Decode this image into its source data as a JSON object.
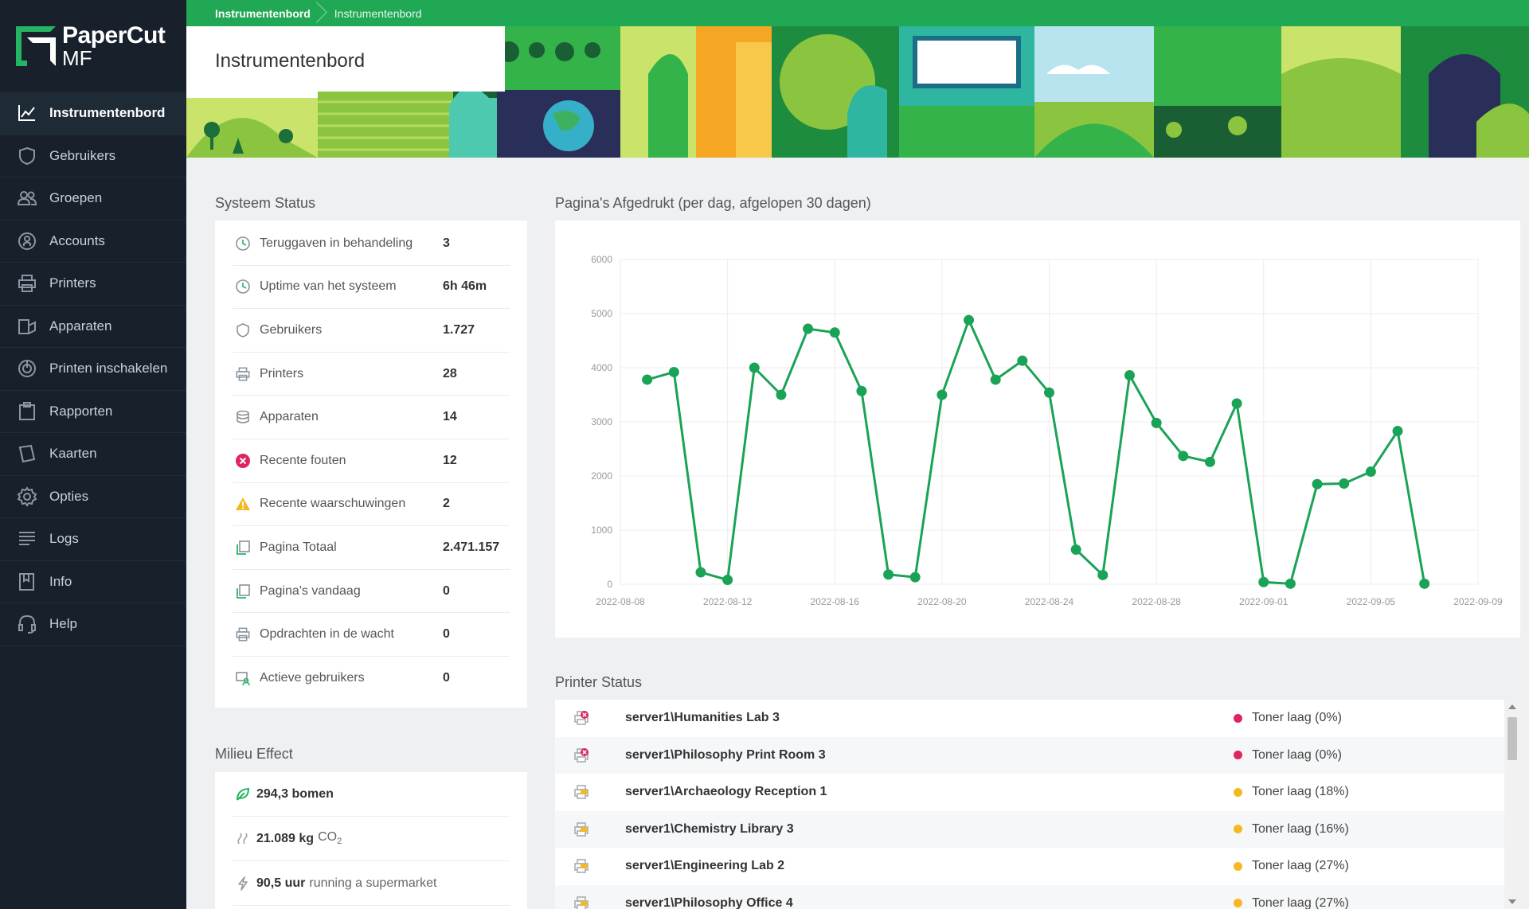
{
  "brand": {
    "name_line1": "PaperCut",
    "name_line2": "MF"
  },
  "breadcrumb": {
    "first": "Instrumentenbord",
    "second": "Instrumentenbord"
  },
  "page": {
    "title": "Instrumentenbord"
  },
  "sidebar": {
    "items": [
      {
        "label": "Instrumentenbord",
        "icon": "chart-line-icon",
        "active": true
      },
      {
        "label": "Gebruikers",
        "icon": "user-shield-icon"
      },
      {
        "label": "Groepen",
        "icon": "group-icon"
      },
      {
        "label": "Accounts",
        "icon": "account-icon"
      },
      {
        "label": "Printers",
        "icon": "printer-icon"
      },
      {
        "label": "Apparaten",
        "icon": "device-icon"
      },
      {
        "label": "Printen inschakelen",
        "icon": "power-icon"
      },
      {
        "label": "Rapporten",
        "icon": "clipboard-icon"
      },
      {
        "label": "Kaarten",
        "icon": "card-icon"
      },
      {
        "label": "Opties",
        "icon": "gear-icon"
      },
      {
        "label": "Logs",
        "icon": "list-icon"
      },
      {
        "label": "Info",
        "icon": "book-icon"
      },
      {
        "label": "Help",
        "icon": "headset-icon"
      }
    ]
  },
  "system_status": {
    "title": "Systeem Status",
    "rows": [
      {
        "label": "Teruggaven in behandeling",
        "value": "3",
        "icon": "clock-icon"
      },
      {
        "label": "Uptime van het systeem",
        "value": "6h 46m",
        "icon": "clock-icon"
      },
      {
        "label": "Gebruikers",
        "value": "1.727",
        "icon": "shield-icon"
      },
      {
        "label": "Printers",
        "value": "28",
        "icon": "printer-icon"
      },
      {
        "label": "Apparaten",
        "value": "14",
        "icon": "database-icon"
      },
      {
        "label": "Recente fouten",
        "value": "12",
        "icon": "error-icon"
      },
      {
        "label": "Recente waarschuwingen",
        "value": "2",
        "icon": "warning-icon"
      },
      {
        "label": "Pagina Totaal",
        "value": "2.471.157",
        "icon": "pages-icon"
      },
      {
        "label": "Pagina's vandaag",
        "value": "0",
        "icon": "pages-icon"
      },
      {
        "label": "Opdrachten in de wacht",
        "value": "0",
        "icon": "printer-icon"
      },
      {
        "label": "Actieve gebruikers",
        "value": "0",
        "icon": "monitor-user-icon"
      }
    ]
  },
  "environment": {
    "title": "Milieu Effect",
    "trees_value": "294,3 bomen",
    "co2_value": "21.089 kg",
    "co2_unit": "CO",
    "co2_sub": "2",
    "energy_value": "90,5 uur",
    "energy_text": "running a supermarket"
  },
  "chart_title": "Pagina's Afgedrukt (per dag, afgelopen 30 dagen)",
  "chart_data": {
    "type": "line",
    "title": "Pagina's Afgedrukt (per dag, afgelopen 30 dagen)",
    "x_start": "2022-08-08",
    "x_ticks": [
      "2022-08-08",
      "2022-08-12",
      "2022-08-16",
      "2022-08-20",
      "2022-08-24",
      "2022-08-28",
      "2022-09-01",
      "2022-09-05",
      "2022-09-09"
    ],
    "y_ticks": [
      0,
      1000,
      2000,
      3000,
      4000,
      5000,
      6000
    ],
    "ylim": [
      0,
      6000
    ],
    "grid": true,
    "color": "#1aa356",
    "series": [
      {
        "x": [
          "2022-08-09",
          "2022-08-10",
          "2022-08-11",
          "2022-08-12",
          "2022-08-13",
          "2022-08-14",
          "2022-08-15",
          "2022-08-16",
          "2022-08-17",
          "2022-08-18",
          "2022-08-19",
          "2022-08-20",
          "2022-08-21",
          "2022-08-22",
          "2022-08-23",
          "2022-08-24",
          "2022-08-25",
          "2022-08-26",
          "2022-08-27",
          "2022-08-28",
          "2022-08-29",
          "2022-08-30",
          "2022-08-31",
          "2022-09-01",
          "2022-09-02",
          "2022-09-03",
          "2022-09-04",
          "2022-09-05",
          "2022-09-06",
          "2022-09-07"
        ],
        "values": [
          3780,
          3920,
          220,
          80,
          4000,
          3500,
          4720,
          4650,
          3570,
          180,
          130,
          3500,
          4880,
          3780,
          4130,
          3540,
          640,
          170,
          3860,
          2980,
          2370,
          2260,
          3340,
          40,
          10,
          1850,
          1860,
          2080,
          2830,
          10
        ]
      }
    ]
  },
  "printer_status": {
    "title": "Printer Status",
    "rows": [
      {
        "name": "server1\\Humanities Lab 3",
        "status": "Toner laag (0%)",
        "color": "#e0245e",
        "icon": "printer-error-icon"
      },
      {
        "name": "server1\\Philosophy Print Room 3",
        "status": "Toner laag (0%)",
        "color": "#e0245e",
        "icon": "printer-error-icon"
      },
      {
        "name": "server1\\Archaeology Reception 1",
        "status": "Toner laag (18%)",
        "color": "#f5b820",
        "icon": "printer-warning-icon"
      },
      {
        "name": "server1\\Chemistry Library 3",
        "status": "Toner laag (16%)",
        "color": "#f5b820",
        "icon": "printer-warning-icon"
      },
      {
        "name": "server1\\Engineering Lab 2",
        "status": "Toner laag (27%)",
        "color": "#f5b820",
        "icon": "printer-warning-icon"
      },
      {
        "name": "server1\\Philosophy Office 4",
        "status": "Toner laag (27%)",
        "color": "#f5b820",
        "icon": "printer-warning-icon"
      }
    ]
  }
}
